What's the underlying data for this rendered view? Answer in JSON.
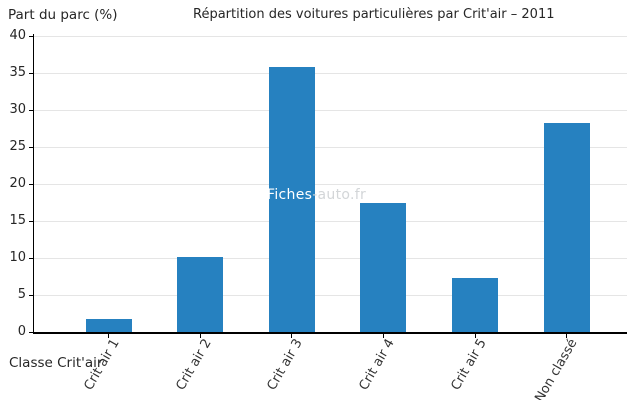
{
  "figure": {
    "title": "Répartition des voitures particulières par Crit'air – 2011",
    "y_axis_title": "Part du parc (%)",
    "x_axis_title": "Classe Crit'air"
  },
  "watermark": {
    "left_part": "Fiches",
    "right_part": "-auto.fr"
  },
  "colors": {
    "bar": "#2681c0",
    "gridline": "#e5e5e5",
    "axis": "#000000",
    "watermark_over_bar": "#ffffff",
    "watermark_over_background": "#d3d6d8"
  },
  "chart_data": {
    "type": "bar",
    "title": "Répartition des voitures particulières par Crit'air – 2011",
    "xlabel": "Classe Crit'air",
    "ylabel": "Part du parc (%)",
    "categories": [
      "Crit air 1",
      "Crit air 2",
      "Crit air 3",
      "Crit air 4",
      "Crit air 5",
      "Non classé"
    ],
    "values": [
      1.8,
      10.1,
      35.8,
      17.4,
      7.3,
      28.2
    ],
    "ylim": [
      0,
      40
    ],
    "yticks": [
      0,
      5,
      10,
      15,
      20,
      25,
      30,
      35,
      40
    ],
    "grid": true,
    "legend": "none",
    "bar_color": "#2681c0"
  }
}
